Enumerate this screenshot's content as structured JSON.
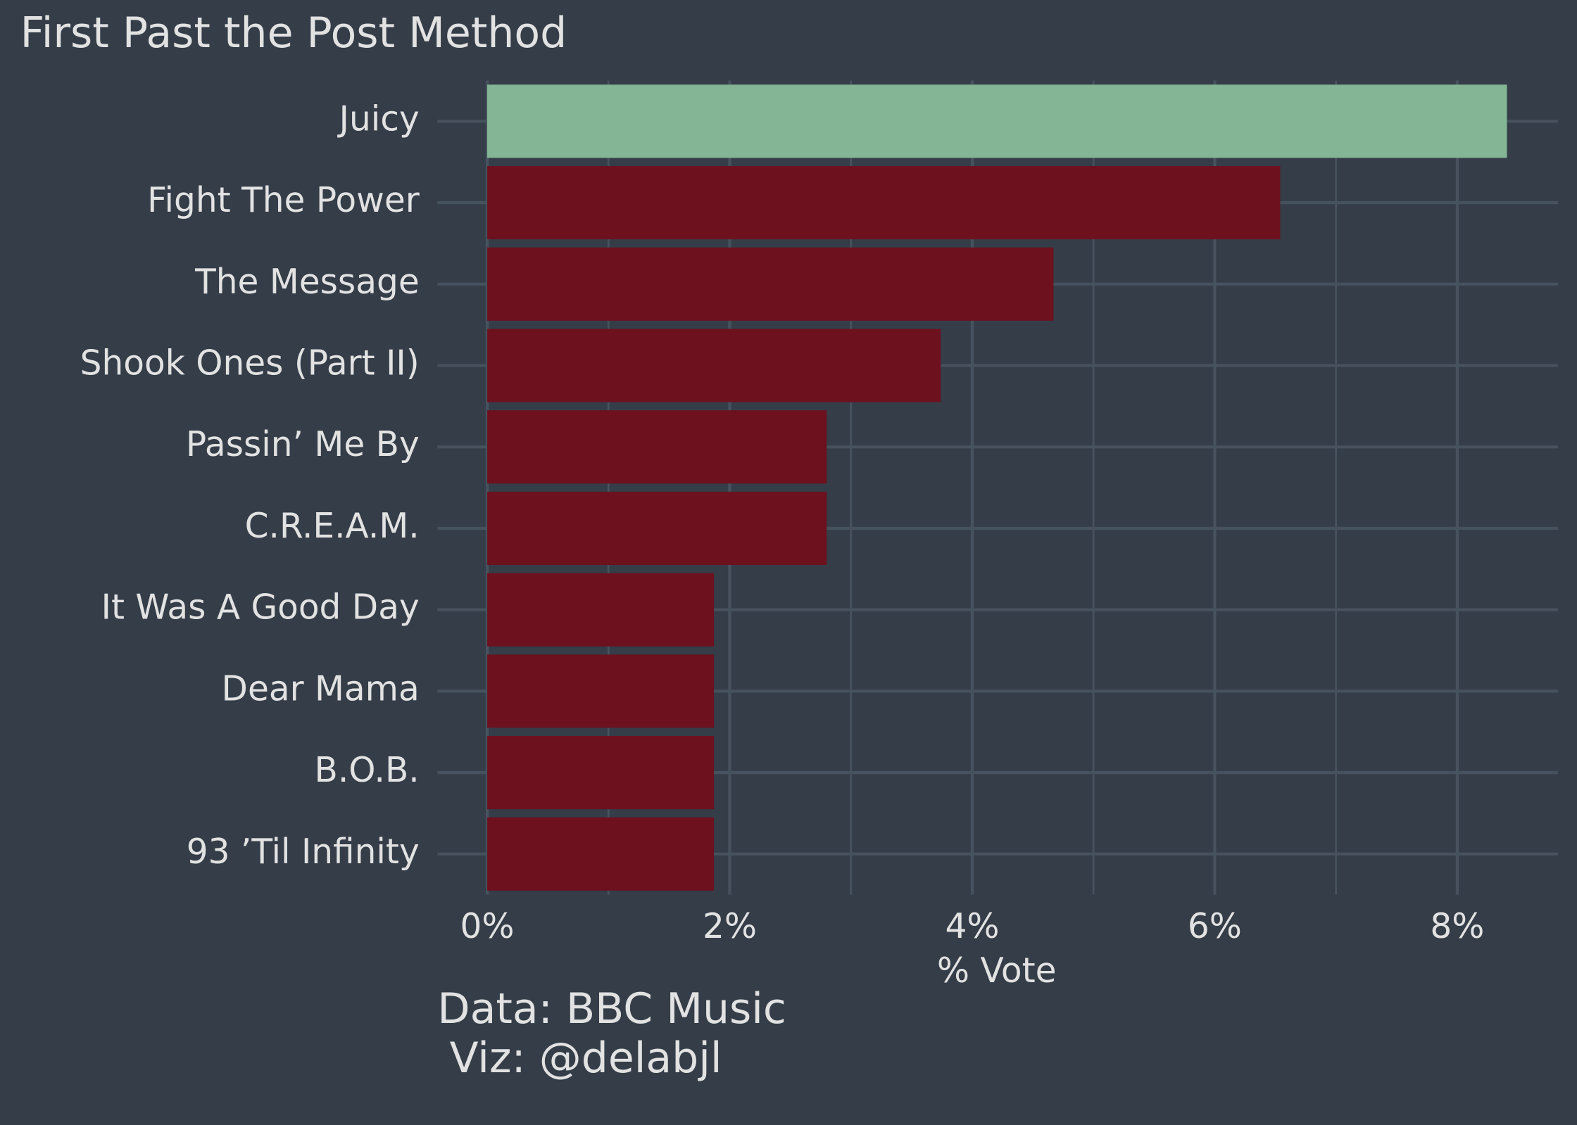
{
  "chart_data": {
    "type": "barh",
    "title": "First Past the Post Method",
    "categories": [
      "Juicy",
      "Fight The Power",
      "The Message",
      "Shook Ones (Part II)",
      "Passin’ Me By",
      "C.R.E.A.M.",
      "It Was A Good Day",
      "Dear Mama",
      "B.O.B.",
      "93 ’Til Infinity"
    ],
    "values": [
      8.41,
      6.54,
      4.67,
      3.74,
      2.8,
      2.8,
      1.87,
      1.87,
      1.87,
      1.87
    ],
    "colors": [
      "#84b594",
      "#6d111f",
      "#6d111f",
      "#6d111f",
      "#6d111f",
      "#6d111f",
      "#6d111f",
      "#6d111f",
      "#6d111f",
      "#6d111f"
    ],
    "xlim": [
      -0.41,
      8.83
    ],
    "xticks": [
      {
        "value": 0,
        "label": "0%"
      },
      {
        "value": 2,
        "label": "2%"
      },
      {
        "value": 4,
        "label": "4%"
      },
      {
        "value": 6,
        "label": "6%"
      },
      {
        "value": 8,
        "label": "8%"
      }
    ],
    "xminor": [
      1,
      3,
      5,
      7
    ],
    "xlabel": "% Vote",
    "caption": [
      "Data: BBC Music",
      "Viz: @delabjl"
    ],
    "grid": true
  }
}
